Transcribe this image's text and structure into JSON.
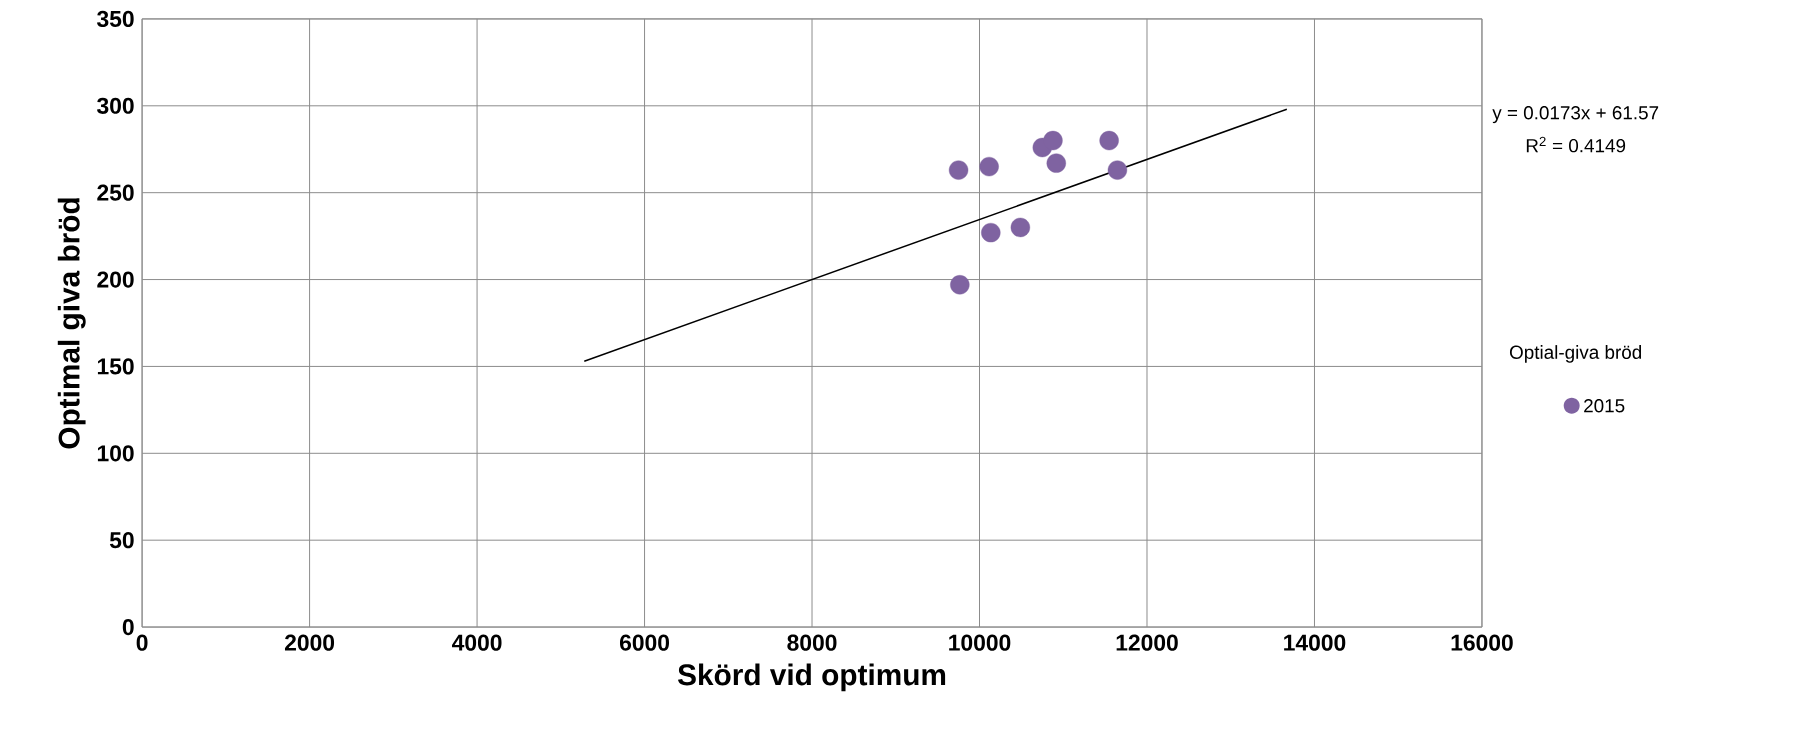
{
  "chart_data": {
    "type": "scatter",
    "xlabel": "Skörd vid optimum",
    "ylabel": "Optimal giva bröd",
    "legend_title": "Optial-giva bröd",
    "annotations": [
      "y = 0.0173x + 61.57",
      "R$^{2}$ = 0.4149"
    ],
    "series": [
      {
        "name": "2015",
        "color": "#7f63a1",
        "marker": "circle",
        "x": [
          9750,
          10115,
          10750,
          10877,
          10917,
          11548,
          11647,
          10135,
          10488,
          9765
        ],
        "values": [
          263,
          265,
          276,
          280,
          267,
          280,
          263,
          227,
          230,
          197
        ]
      },
      {
        "type": "line",
        "marker": "none",
        "color": "#000000",
        "x": [
          5280,
          13670
        ],
        "values": [
          153,
          298
        ]
      }
    ],
    "xlim": [
      0,
      16000
    ],
    "xticks": [
      0,
      2000,
      4000,
      6000,
      8000,
      10000,
      12000,
      14000,
      16000
    ],
    "ylim": [
      0,
      350
    ],
    "yticks": [
      0,
      50,
      100,
      150,
      200,
      250,
      300,
      350
    ],
    "grid": true,
    "legend": "right"
  }
}
